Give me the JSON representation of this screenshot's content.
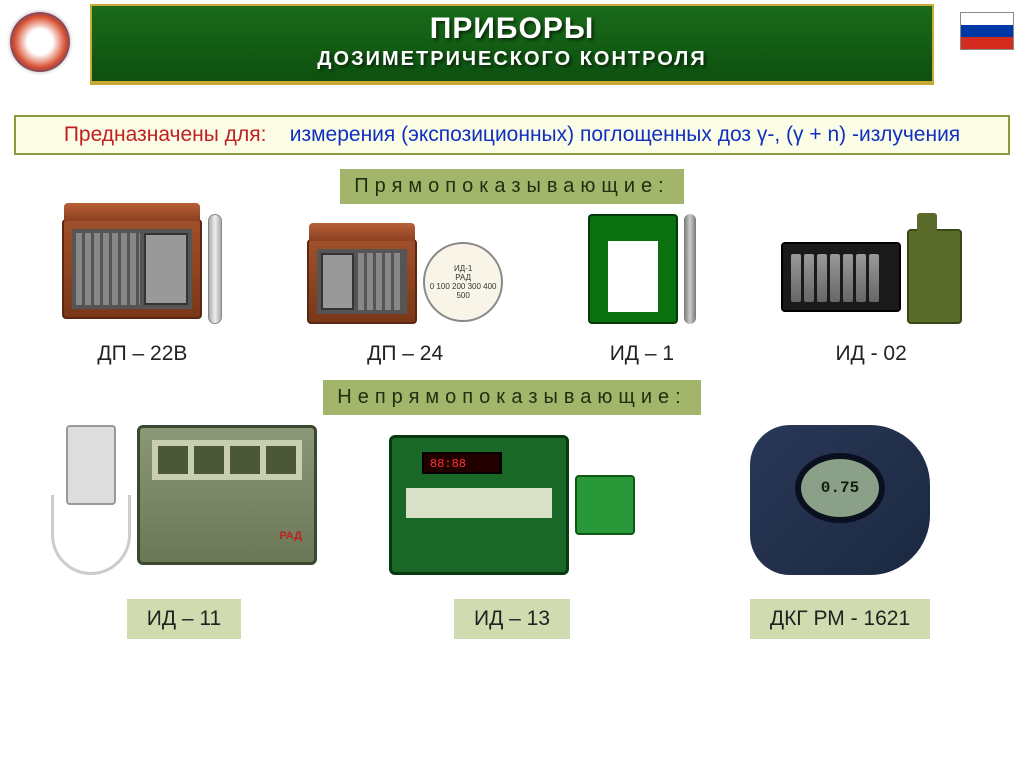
{
  "header": {
    "title1": "ПРИБОРЫ",
    "title2": "ДОЗИМЕТРИЧЕСКОГО  КОНТРОЛЯ"
  },
  "purpose": {
    "label": "Предназначены для:",
    "text": "измерения (экспозиционных) поглощенных доз γ-, (γ + n) -излучения"
  },
  "sections": {
    "direct": "Прямопоказывающие:",
    "indirect": "Непрямопоказывающие:"
  },
  "devices_direct": [
    {
      "name": "ДП – 22В"
    },
    {
      "name": "ДП – 24"
    },
    {
      "name": "ИД – 1"
    },
    {
      "name": "ИД - 02"
    }
  ],
  "devices_indirect": [
    {
      "name": "ИД – 11"
    },
    {
      "name": "ИД – 13"
    },
    {
      "name": "ДКГ РМ - 1621"
    }
  ],
  "dial": {
    "line1": "ИД-1",
    "line2": "РАД",
    "line3": "0 100 200 300 400 500"
  },
  "dkg_display": "0.75",
  "colors": {
    "header_bg": "#156015",
    "header_border": "#c8a838",
    "section_bg": "#a3b56a",
    "purpose_bg": "#fbfde6",
    "purpose_border": "#8a9a3a",
    "caption_box_bg": "#d0dcb0",
    "red_text": "#c02020",
    "blue_text": "#1030c0"
  }
}
